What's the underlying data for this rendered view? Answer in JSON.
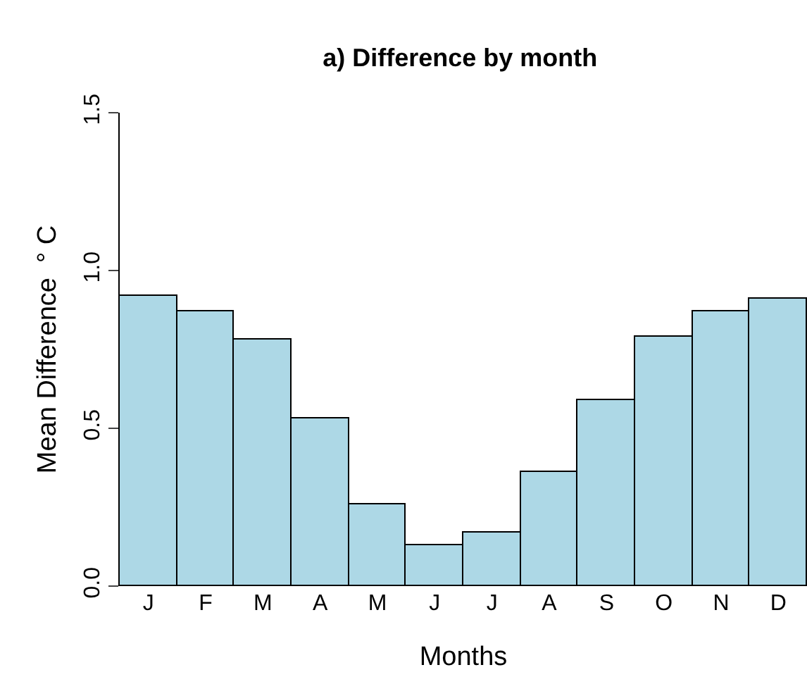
{
  "chart_data": {
    "type": "bar",
    "title": "a) Difference by month",
    "xlabel": "Months",
    "ylabel": "Mean Difference  ° C",
    "categories": [
      "J",
      "F",
      "M",
      "A",
      "M",
      "J",
      "J",
      "A",
      "S",
      "O",
      "N",
      "D"
    ],
    "values": [
      0.92,
      0.87,
      0.78,
      0.53,
      0.26,
      0.13,
      0.17,
      0.36,
      0.59,
      0.79,
      0.87,
      0.91
    ],
    "color": "#add8e6",
    "ylim": [
      0,
      1.5
    ],
    "yticks": [
      {
        "value": 0,
        "label": "0.0"
      },
      {
        "value": 0.5,
        "label": "0.5"
      },
      {
        "value": 1,
        "label": "1.0"
      },
      {
        "value": 1.5,
        "label": "1.5"
      }
    ],
    "grid": false
  }
}
